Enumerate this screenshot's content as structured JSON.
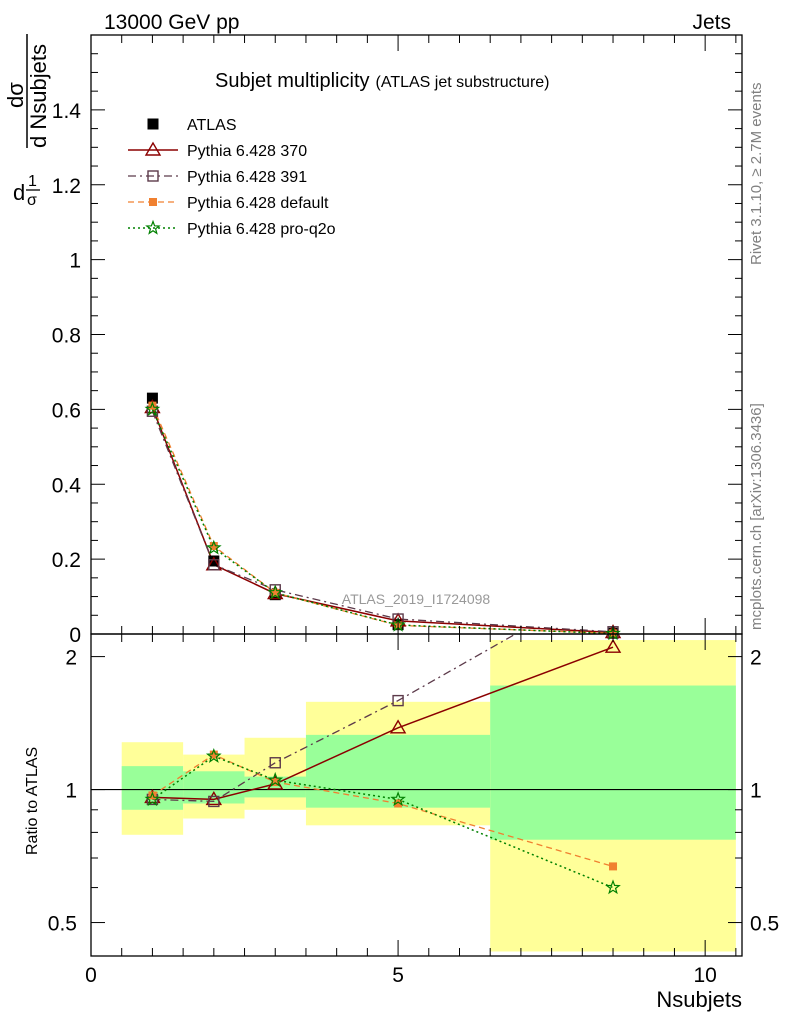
{
  "header": {
    "left": "13000 GeV pp",
    "right": "Jets"
  },
  "side_labels": {
    "rivet": "Rivet 3.1.10, ≥ 2.7M events",
    "mcplots": "mcplots.cern.ch [arXiv:1306.3436]"
  },
  "colors": {
    "atlas": "#000000",
    "p370": "#8b0000",
    "p391": "#5c3a4a",
    "pdefault": "#f08030",
    "pq2o": "#008000",
    "band_outer": "#ffff99",
    "band_inner": "#99ff99"
  },
  "chart_data": [
    {
      "type": "line",
      "title": "Subjet multiplicity",
      "subtitle": "(ATLAS jet substructure)",
      "analysis_label": "ATLAS_2019_I1724098",
      "xlabel": "",
      "ylabel": "1/σ dσ/d Nsubjets",
      "ylabel_parts": {
        "one": "1",
        "sigma": "σ",
        "d": "d",
        "dsigma": "dσ",
        "denom": "d Nsubjets"
      },
      "xlim": [
        0,
        10.6
      ],
      "ylim": [
        0,
        1.6
      ],
      "x_ticks": [
        0,
        5,
        10
      ],
      "y_ticks": [
        0,
        0.2,
        0.4,
        0.6,
        0.8,
        1,
        1.2,
        1.4
      ],
      "y_tick_labels": [
        "0",
        "0.2",
        "0.4",
        "0.6",
        "0.8",
        "1",
        "1.2",
        "1.4"
      ],
      "legend_position": "top-left",
      "x": [
        1,
        2,
        3,
        5,
        8.5
      ],
      "series": [
        {
          "name": "ATLAS",
          "key": "atlas",
          "marker": "square-filled",
          "values": [
            0.63,
            0.195,
            0.105,
            0.025,
            0.002
          ]
        },
        {
          "name": "Pythia 6.428 370",
          "key": "p370",
          "marker": "triangle-open",
          "line": "solid",
          "values": [
            0.605,
            0.185,
            0.108,
            0.035,
            0.004
          ]
        },
        {
          "name": "Pythia 6.428 391",
          "key": "p391",
          "marker": "square-open",
          "line": "dashdot",
          "values": [
            0.595,
            0.185,
            0.118,
            0.04,
            0.006
          ]
        },
        {
          "name": "Pythia 6.428 default",
          "key": "pdefault",
          "marker": "square-filled-small",
          "line": "dashed",
          "values": [
            0.61,
            0.235,
            0.11,
            0.023,
            0.0015
          ]
        },
        {
          "name": "Pythia 6.428 pro-q2o",
          "key": "pq2o",
          "marker": "star",
          "line": "dotted",
          "values": [
            0.6,
            0.23,
            0.11,
            0.024,
            0.0012
          ]
        }
      ]
    },
    {
      "type": "line",
      "title": "",
      "xlabel": "Nsubjets",
      "ylabel": "Ratio to ATLAS",
      "xlim": [
        0,
        10.6
      ],
      "ylim": [
        0.42,
        2.25
      ],
      "x_ticks": [
        0,
        5,
        10
      ],
      "x_tick_labels": [
        "0",
        "5",
        "10"
      ],
      "y_ticks": [
        0.5,
        1,
        2
      ],
      "y_tick_labels": [
        "0.5",
        "1",
        "2"
      ],
      "reference_line": 1,
      "bands": [
        {
          "x0": 0.5,
          "x1": 1.5,
          "outer": [
            0.79,
            1.28
          ],
          "inner": [
            0.9,
            1.13
          ]
        },
        {
          "x0": 1.5,
          "x1": 2.5,
          "outer": [
            0.86,
            1.2
          ],
          "inner": [
            0.93,
            1.1
          ]
        },
        {
          "x0": 2.5,
          "x1": 3.5,
          "outer": [
            0.9,
            1.31
          ],
          "inner": [
            0.96,
            1.07
          ]
        },
        {
          "x0": 3.5,
          "x1": 6.5,
          "outer": [
            0.83,
            1.58
          ],
          "inner": [
            0.91,
            1.33
          ]
        },
        {
          "x0": 6.5,
          "x1": 10.5,
          "outer": [
            0.43,
            2.18
          ],
          "inner": [
            0.77,
            1.72
          ]
        }
      ],
      "x": [
        1,
        2,
        3,
        5,
        8.5
      ],
      "series": [
        {
          "name": "Pythia 6.428 370",
          "key": "p370",
          "marker": "triangle-open",
          "line": "solid",
          "values": [
            0.96,
            0.95,
            1.03,
            1.38,
            2.1
          ]
        },
        {
          "name": "Pythia 6.428 391",
          "key": "p391",
          "marker": "square-open",
          "line": "dashdot",
          "values": [
            0.95,
            0.94,
            1.15,
            1.59,
            3.0
          ]
        },
        {
          "name": "Pythia 6.428 default",
          "key": "pdefault",
          "marker": "square-filled-small",
          "line": "dashed",
          "values": [
            0.97,
            1.2,
            1.04,
            0.93,
            0.67
          ]
        },
        {
          "name": "Pythia 6.428 pro-q2o",
          "key": "pq2o",
          "marker": "star",
          "line": "dotted",
          "values": [
            0.95,
            1.19,
            1.05,
            0.95,
            0.6
          ]
        }
      ]
    }
  ]
}
